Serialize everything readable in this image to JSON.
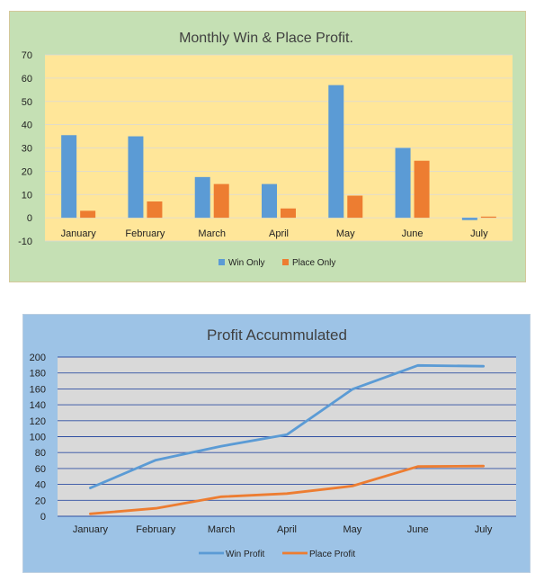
{
  "chart_data": [
    {
      "type": "bar",
      "title": "Monthly Win & Place Profit.",
      "categories": [
        "January",
        "February",
        "March",
        "April",
        "May",
        "June",
        "July"
      ],
      "series": [
        {
          "name": "Win Only",
          "color": "#5b9bd5",
          "values": [
            35.5,
            35,
            17.5,
            14.5,
            57,
            30,
            -1
          ]
        },
        {
          "name": "Place Only",
          "color": "#ed7d31",
          "values": [
            3,
            7,
            14.5,
            4,
            9.5,
            24.5,
            0.5
          ]
        }
      ],
      "ylim": [
        -10,
        70
      ],
      "yticks": [
        -10,
        0,
        10,
        20,
        30,
        40,
        50,
        60,
        70
      ],
      "grid": true,
      "legend": "bottom",
      "plot_background": "#ffe699"
    },
    {
      "type": "line",
      "title": "Profit Accummulated",
      "categories": [
        "January",
        "February",
        "March",
        "April",
        "May",
        "June",
        "July"
      ],
      "series": [
        {
          "name": "Win Profit",
          "color": "#5b9bd5",
          "values": [
            35.5,
            70.5,
            88,
            102.5,
            159.5,
            189.5,
            188.5
          ]
        },
        {
          "name": "Place Profit",
          "color": "#ed7d31",
          "values": [
            3,
            10,
            24.5,
            28.5,
            38,
            62.5,
            63
          ]
        }
      ],
      "ylim": [
        0,
        200
      ],
      "yticks": [
        0,
        20,
        40,
        60,
        80,
        100,
        120,
        140,
        160,
        180,
        200
      ],
      "grid": true,
      "legend": "bottom",
      "plot_background": "#d9d9d9",
      "grid_color": "#2f4fa3"
    }
  ]
}
